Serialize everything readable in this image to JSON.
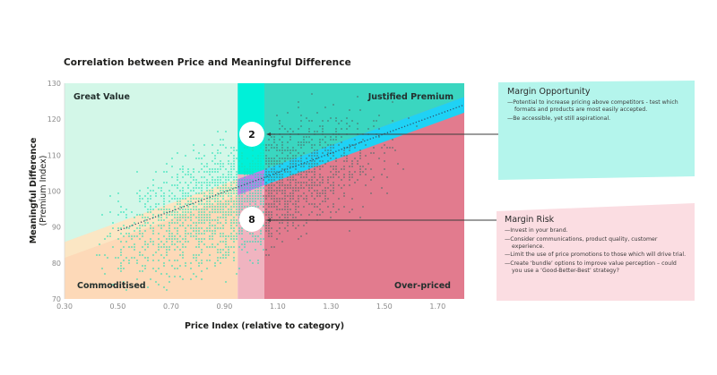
{
  "chart_data": {
    "type": "scatter",
    "title": "Correlation between Price and Meaningful Difference",
    "xlabel": "Price Index (relative to category)",
    "ylabel": "Meaningful Difference",
    "ylabel_sub": "(Premium Index)",
    "xlim": [
      0.3,
      1.8
    ],
    "ylim": [
      70,
      130
    ],
    "x_ticks": [
      "0.30",
      "0.50",
      "0.70",
      "0.90",
      "1.10",
      "1.30",
      "1.50",
      "1.70"
    ],
    "x_tick_values": [
      0.3,
      0.5,
      0.7,
      0.9,
      1.1,
      1.3,
      1.5,
      1.7
    ],
    "y_ticks": [
      "130",
      "120",
      "110",
      "100",
      "90",
      "80",
      "70"
    ],
    "y_tick_values": [
      130,
      120,
      110,
      100,
      90,
      80,
      70
    ],
    "grid": false,
    "parity_band": {
      "x_from": 0.95,
      "x_to": 1.05
    },
    "trend_line": {
      "x": [
        0.5,
        1.8
      ],
      "y": [
        89,
        124
      ]
    },
    "regions": [
      {
        "name": "Great Value",
        "color": "#d3f7e8",
        "position": "top-left"
      },
      {
        "name": "Justified Premium",
        "color": "#3ad6c0",
        "position": "top-right"
      },
      {
        "name": "Commoditised",
        "color": "#fdd9b8",
        "position": "bottom-left"
      },
      {
        "name": "Over-priced",
        "color": "#e27b8e",
        "position": "bottom-right"
      }
    ],
    "band_colors": {
      "parity_top": "#00f0d8",
      "parity_bottom": "#f0b4c0",
      "trend_band_right": "#1fd2f5",
      "trend_band_left": "#fbe6c4",
      "trend_band_mid": "#b784e6"
    },
    "point_colors": {
      "low_price": "#19e0b4",
      "high_price": "#4f6e6a"
    },
    "annotations": [
      {
        "label": "2",
        "x": 1.0,
        "y": 119
      },
      {
        "label": "8",
        "x": 1.0,
        "y": 96
      }
    ]
  },
  "callouts": {
    "opportunity": {
      "title": "Margin Opportunity",
      "bullets": [
        "Potential to increase pricing above competitors - test which formats and products are most easily accepted.",
        "Be accessible, yet still aspirational."
      ],
      "color": "#b4f5ec"
    },
    "risk": {
      "title": "Margin Risk",
      "bullets": [
        "Invest in your brand.",
        "Consider communications, product quality, customer experience.",
        "Limit the use of price promotions to those which will drive trial.",
        "Create ‘bundle’ options to improve value perception – could you use a ‘Good-Better-Best’ strategy?"
      ],
      "color": "#fbdde2"
    }
  }
}
